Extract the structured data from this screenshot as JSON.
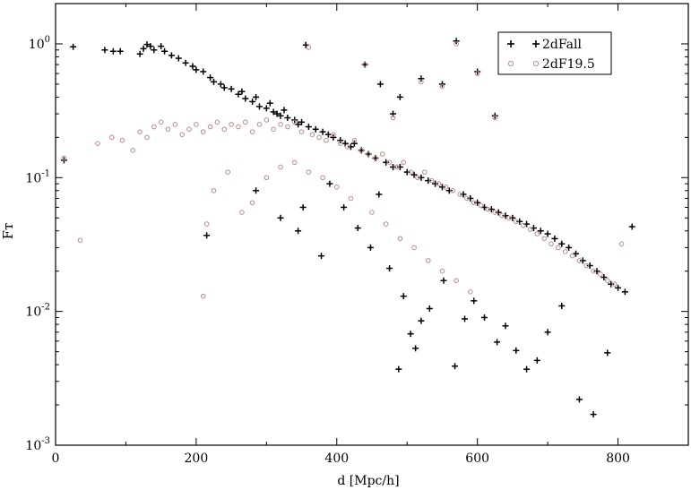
{
  "chart_data": {
    "type": "scatter",
    "xlabel": "d [Mpc/h]",
    "ylabel": "Fᴛ",
    "xlim": [
      0,
      900
    ],
    "ylim": [
      0.001,
      2
    ],
    "yscale": "log",
    "x_ticks": [
      0,
      200,
      400,
      600,
      800
    ],
    "x_tick_labels": [
      "0",
      "200",
      "400",
      "600",
      "800"
    ],
    "y_ticks": [
      1,
      0.1,
      0.01,
      0.001
    ],
    "y_tick_labels": [
      {
        "base": "10",
        "exp": "0"
      },
      {
        "base": "10",
        "exp": "-1"
      },
      {
        "base": "10",
        "exp": "-2"
      },
      {
        "base": "10",
        "exp": "-3"
      }
    ],
    "legend_position": "top-right",
    "series": [
      {
        "name": "2dFall",
        "marker": "plus",
        "color": "#000000",
        "points": [
          [
            12,
            0.135
          ],
          [
            25,
            0.95
          ],
          [
            70,
            0.9
          ],
          [
            82,
            0.88
          ],
          [
            92,
            0.88
          ],
          [
            120,
            0.84
          ],
          [
            125,
            0.92
          ],
          [
            130,
            0.99
          ],
          [
            135,
            0.96
          ],
          [
            140,
            0.9
          ],
          [
            150,
            0.96
          ],
          [
            155,
            0.88
          ],
          [
            165,
            0.82
          ],
          [
            175,
            0.78
          ],
          [
            185,
            0.72
          ],
          [
            195,
            0.68
          ],
          [
            200,
            0.64
          ],
          [
            210,
            0.62
          ],
          [
            220,
            0.56
          ],
          [
            225,
            0.52
          ],
          [
            235,
            0.5
          ],
          [
            240,
            0.47
          ],
          [
            250,
            0.46
          ],
          [
            260,
            0.42
          ],
          [
            265,
            0.44
          ],
          [
            270,
            0.39
          ],
          [
            280,
            0.37
          ],
          [
            285,
            0.4
          ],
          [
            290,
            0.34
          ],
          [
            300,
            0.33
          ],
          [
            305,
            0.36
          ],
          [
            310,
            0.31
          ],
          [
            315,
            0.3
          ],
          [
            320,
            0.29
          ],
          [
            325,
            0.32
          ],
          [
            330,
            0.28
          ],
          [
            340,
            0.27
          ],
          [
            345,
            0.25
          ],
          [
            350,
            0.26
          ],
          [
            356,
            0.98
          ],
          [
            360,
            0.24
          ],
          [
            370,
            0.23
          ],
          [
            380,
            0.22
          ],
          [
            388,
            0.21
          ],
          [
            395,
            0.2
          ],
          [
            405,
            0.19
          ],
          [
            412,
            0.18
          ],
          [
            420,
            0.17
          ],
          [
            425,
            0.18
          ],
          [
            435,
            0.16
          ],
          [
            440,
            0.7
          ],
          [
            445,
            0.15
          ],
          [
            455,
            0.14
          ],
          [
            462,
            0.5
          ],
          [
            470,
            0.13
          ],
          [
            480,
            0.12
          ],
          [
            490,
            0.12
          ],
          [
            500,
            0.11
          ],
          [
            510,
            0.105
          ],
          [
            520,
            0.1
          ],
          [
            530,
            0.095
          ],
          [
            540,
            0.09
          ],
          [
            550,
            0.085
          ],
          [
            560,
            0.08
          ],
          [
            570,
            1.05
          ],
          [
            580,
            0.075
          ],
          [
            590,
            0.07
          ],
          [
            600,
            0.065
          ],
          [
            610,
            0.06
          ],
          [
            620,
            0.058
          ],
          [
            630,
            0.055
          ],
          [
            640,
            0.052
          ],
          [
            650,
            0.05
          ],
          [
            660,
            0.047
          ],
          [
            670,
            0.045
          ],
          [
            680,
            0.042
          ],
          [
            690,
            0.04
          ],
          [
            700,
            0.038
          ],
          [
            710,
            0.035
          ],
          [
            720,
            0.032
          ],
          [
            730,
            0.03
          ],
          [
            740,
            0.027
          ],
          [
            750,
            0.024
          ],
          [
            760,
            0.022
          ],
          [
            770,
            0.02
          ],
          [
            780,
            0.018
          ],
          [
            790,
            0.016
          ],
          [
            800,
            0.015
          ],
          [
            810,
            0.014
          ],
          [
            820,
            0.043
          ],
          [
            215,
            0.037
          ],
          [
            285,
            0.08
          ],
          [
            320,
            0.05
          ],
          [
            345,
            0.04
          ],
          [
            352,
            0.06
          ],
          [
            378,
            0.026
          ],
          [
            390,
            0.09
          ],
          [
            410,
            0.06
          ],
          [
            430,
            0.042
          ],
          [
            448,
            0.03
          ],
          [
            460,
            0.075
          ],
          [
            475,
            0.021
          ],
          [
            488,
            0.0037
          ],
          [
            495,
            0.013
          ],
          [
            505,
            0.0068
          ],
          [
            512,
            0.0053
          ],
          [
            520,
            0.0085
          ],
          [
            532,
            0.0105
          ],
          [
            552,
            0.017
          ],
          [
            568,
            0.0039
          ],
          [
            582,
            0.0088
          ],
          [
            595,
            0.012
          ],
          [
            610,
            0.009
          ],
          [
            628,
            0.0059
          ],
          [
            640,
            0.0078
          ],
          [
            655,
            0.0051
          ],
          [
            670,
            0.0037
          ],
          [
            685,
            0.0043
          ],
          [
            700,
            0.007
          ],
          [
            720,
            0.011
          ],
          [
            745,
            0.0022
          ],
          [
            765,
            0.0017
          ],
          [
            785,
            0.0049
          ],
          [
            625,
            0.29
          ],
          [
            600,
            0.62
          ],
          [
            550,
            0.5
          ],
          [
            520,
            0.55
          ],
          [
            490,
            0.4
          ],
          [
            480,
            0.3
          ]
        ]
      },
      {
        "name": "2dF19.5",
        "marker": "circle",
        "color": "#bc8a8a",
        "points": [
          [
            12,
            0.14
          ],
          [
            35,
            0.034
          ],
          [
            60,
            0.18
          ],
          [
            80,
            0.2
          ],
          [
            95,
            0.19
          ],
          [
            110,
            0.16
          ],
          [
            120,
            0.22
          ],
          [
            130,
            0.2
          ],
          [
            140,
            0.24
          ],
          [
            150,
            0.26
          ],
          [
            160,
            0.23
          ],
          [
            170,
            0.25
          ],
          [
            180,
            0.21
          ],
          [
            190,
            0.23
          ],
          [
            200,
            0.25
          ],
          [
            210,
            0.22
          ],
          [
            220,
            0.24
          ],
          [
            230,
            0.26
          ],
          [
            240,
            0.23
          ],
          [
            250,
            0.25
          ],
          [
            260,
            0.24
          ],
          [
            270,
            0.26
          ],
          [
            280,
            0.22
          ],
          [
            290,
            0.25
          ],
          [
            300,
            0.27
          ],
          [
            310,
            0.23
          ],
          [
            320,
            0.25
          ],
          [
            330,
            0.24
          ],
          [
            340,
            0.26
          ],
          [
            350,
            0.22
          ],
          [
            360,
            0.94
          ],
          [
            365,
            0.21
          ],
          [
            375,
            0.2
          ],
          [
            385,
            0.19
          ],
          [
            395,
            0.21
          ],
          [
            405,
            0.18
          ],
          [
            415,
            0.17
          ],
          [
            425,
            0.19
          ],
          [
            435,
            0.16
          ],
          [
            440,
            0.7
          ],
          [
            445,
            0.15
          ],
          [
            455,
            0.14
          ],
          [
            465,
            0.15
          ],
          [
            475,
            0.13
          ],
          [
            485,
            0.12
          ],
          [
            495,
            0.13
          ],
          [
            505,
            0.11
          ],
          [
            515,
            0.1
          ],
          [
            525,
            0.11
          ],
          [
            535,
            0.095
          ],
          [
            545,
            0.09
          ],
          [
            555,
            0.085
          ],
          [
            565,
            0.08
          ],
          [
            575,
            0.075
          ],
          [
            585,
            0.07
          ],
          [
            595,
            0.065
          ],
          [
            605,
            0.062
          ],
          [
            615,
            0.058
          ],
          [
            625,
            0.055
          ],
          [
            635,
            0.052
          ],
          [
            645,
            0.05
          ],
          [
            655,
            0.047
          ],
          [
            665,
            0.044
          ],
          [
            675,
            0.041
          ],
          [
            685,
            0.038
          ],
          [
            695,
            0.035
          ],
          [
            705,
            0.032
          ],
          [
            715,
            0.03
          ],
          [
            725,
            0.028
          ],
          [
            735,
            0.026
          ],
          [
            745,
            0.024
          ],
          [
            755,
            0.022
          ],
          [
            765,
            0.02
          ],
          [
            775,
            0.019
          ],
          [
            785,
            0.017
          ],
          [
            795,
            0.016
          ],
          [
            805,
            0.032
          ],
          [
            210,
            0.013
          ],
          [
            215,
            0.045
          ],
          [
            225,
            0.08
          ],
          [
            245,
            0.11
          ],
          [
            265,
            0.055
          ],
          [
            280,
            0.065
          ],
          [
            300,
            0.1
          ],
          [
            320,
            0.12
          ],
          [
            340,
            0.13
          ],
          [
            360,
            0.11
          ],
          [
            380,
            0.1
          ],
          [
            400,
            0.085
          ],
          [
            420,
            0.07
          ],
          [
            450,
            0.055
          ],
          [
            470,
            0.045
          ],
          [
            490,
            0.035
          ],
          [
            510,
            0.03
          ],
          [
            530,
            0.024
          ],
          [
            550,
            0.02
          ],
          [
            570,
            0.017
          ],
          [
            590,
            0.014
          ],
          [
            625,
            0.28
          ],
          [
            600,
            0.6
          ],
          [
            570,
            1.0
          ],
          [
            480,
            0.28
          ],
          [
            520,
            0.52
          ],
          [
            550,
            0.48
          ]
        ]
      }
    ]
  }
}
